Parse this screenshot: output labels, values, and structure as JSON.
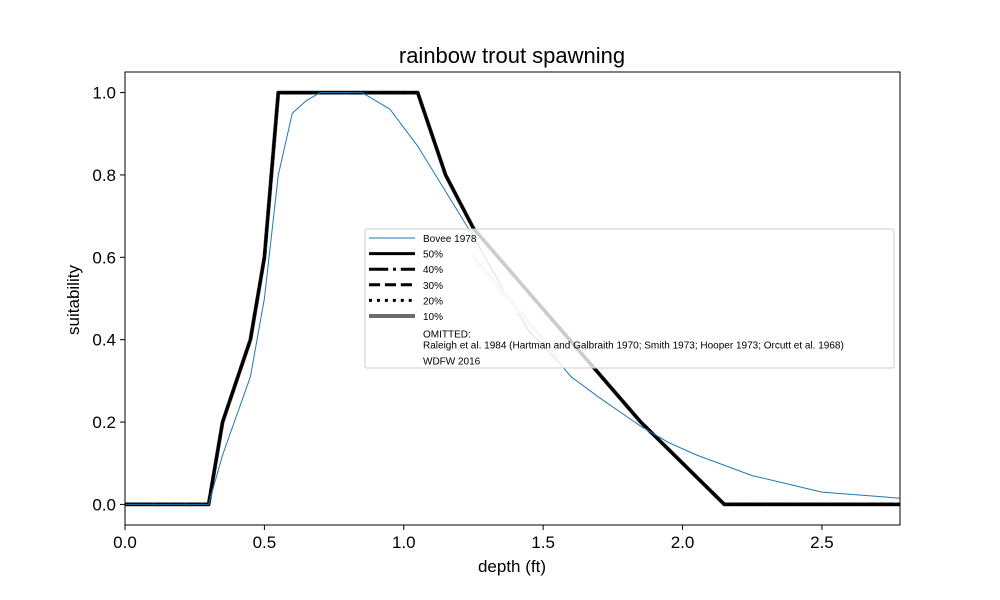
{
  "chart_data": {
    "type": "line",
    "title": "rainbow trout spawning",
    "xlabel": "depth (ft)",
    "ylabel": "suitability",
    "xlim": [
      0,
      2.78
    ],
    "ylim": [
      -0.05,
      1.05
    ],
    "xticks": [
      {
        "value": 0.0,
        "label": "0.0"
      },
      {
        "value": 0.5,
        "label": "0.5"
      },
      {
        "value": 1.0,
        "label": "1.0"
      },
      {
        "value": 1.5,
        "label": "1.5"
      },
      {
        "value": 2.0,
        "label": "2.0"
      },
      {
        "value": 2.5,
        "label": "2.5"
      }
    ],
    "yticks": [
      {
        "value": 0.0,
        "label": "0.0"
      },
      {
        "value": 0.2,
        "label": "0.2"
      },
      {
        "value": 0.4,
        "label": "0.4"
      },
      {
        "value": 0.6,
        "label": "0.6"
      },
      {
        "value": 0.8,
        "label": "0.8"
      },
      {
        "value": 1.0,
        "label": "1.0"
      }
    ],
    "grid": false,
    "legend_position": "center-right",
    "series": [
      {
        "name": "10%",
        "color": "#6b6b6b",
        "style": "solid",
        "width": 4,
        "x": [
          0.0,
          0.3,
          0.35,
          0.45,
          0.5,
          0.55,
          1.05,
          1.15,
          1.25,
          1.85,
          2.15,
          2.78
        ],
        "y": [
          0.0,
          0.0,
          0.2,
          0.4,
          0.6,
          1.0,
          1.0,
          0.8,
          0.67,
          0.2,
          0.0,
          0.0
        ]
      },
      {
        "name": "20%",
        "color": "#000000",
        "style": "dotted",
        "width": 3,
        "x": [
          0.0,
          0.3,
          0.35,
          0.45,
          0.5,
          0.55,
          1.05,
          1.15,
          1.25,
          1.85,
          2.15,
          2.78
        ],
        "y": [
          0.0,
          0.0,
          0.2,
          0.4,
          0.6,
          1.0,
          1.0,
          0.8,
          0.67,
          0.2,
          0.0,
          0.0
        ]
      },
      {
        "name": "30%",
        "color": "#000000",
        "style": "dashed",
        "width": 3,
        "x": [
          0.0,
          0.3,
          0.35,
          0.45,
          0.5,
          0.55,
          1.05,
          1.15,
          1.25,
          1.85,
          2.15,
          2.78
        ],
        "y": [
          0.0,
          0.0,
          0.2,
          0.4,
          0.6,
          1.0,
          1.0,
          0.8,
          0.67,
          0.2,
          0.0,
          0.0
        ]
      },
      {
        "name": "40%",
        "color": "#000000",
        "style": "dashdot",
        "width": 3,
        "x": [
          0.0,
          0.3,
          0.35,
          0.45,
          0.5,
          0.55,
          1.05,
          1.15,
          1.25,
          1.85,
          2.15,
          2.78
        ],
        "y": [
          0.0,
          0.0,
          0.2,
          0.4,
          0.6,
          1.0,
          1.0,
          0.8,
          0.67,
          0.2,
          0.0,
          0.0
        ]
      },
      {
        "name": "50%",
        "color": "#000000",
        "style": "solid",
        "width": 3,
        "x": [
          0.0,
          0.3,
          0.35,
          0.45,
          0.5,
          0.55,
          1.05,
          1.15,
          1.25,
          1.85,
          2.15,
          2.78
        ],
        "y": [
          0.0,
          0.0,
          0.2,
          0.4,
          0.6,
          1.0,
          1.0,
          0.8,
          0.67,
          0.2,
          0.0,
          0.0
        ]
      },
      {
        "name": "Bovee 1978",
        "color": "#1f77b4",
        "style": "solid",
        "width": 1,
        "x": [
          0.0,
          0.3,
          0.35,
          0.45,
          0.5,
          0.55,
          0.6,
          0.65,
          0.7,
          0.75,
          0.85,
          0.95,
          1.05,
          1.15,
          1.25,
          1.35,
          1.45,
          1.55,
          1.6,
          1.7,
          1.85,
          1.95,
          2.05,
          2.25,
          2.5,
          2.78
        ],
        "y": [
          0.0,
          0.0,
          0.12,
          0.31,
          0.5,
          0.8,
          0.95,
          0.98,
          1.0,
          1.0,
          1.0,
          0.96,
          0.87,
          0.76,
          0.65,
          0.53,
          0.42,
          0.35,
          0.31,
          0.26,
          0.19,
          0.15,
          0.12,
          0.07,
          0.03,
          0.015
        ]
      }
    ],
    "legend": {
      "entries": [
        {
          "label": "Bovee 1978",
          "color": "#1f77b4",
          "style": "solid",
          "width": 1
        },
        {
          "label": "50%",
          "color": "#000000",
          "style": "solid",
          "width": 3
        },
        {
          "label": "40%",
          "color": "#000000",
          "style": "dashdot",
          "width": 3
        },
        {
          "label": "30%",
          "color": "#000000",
          "style": "dashed",
          "width": 3
        },
        {
          "label": "20%",
          "color": "#000000",
          "style": "dotted",
          "width": 3
        },
        {
          "label": "10%",
          "color": "#6b6b6b",
          "style": "solid",
          "width": 4
        }
      ],
      "omitted_header": "OMITTED:",
      "omitted_text": "Raleigh et al. 1984 (Hartman and Galbraith 1970; Smith 1973; Hooper 1973; Orcutt et al. 1968)",
      "extra_text": "WDFW 2016"
    },
    "overlay": {
      "color": "#dcdcdc",
      "width": 4,
      "x": [
        1.25,
        1.55
      ],
      "y": [
        0.6,
        0.36
      ]
    }
  }
}
